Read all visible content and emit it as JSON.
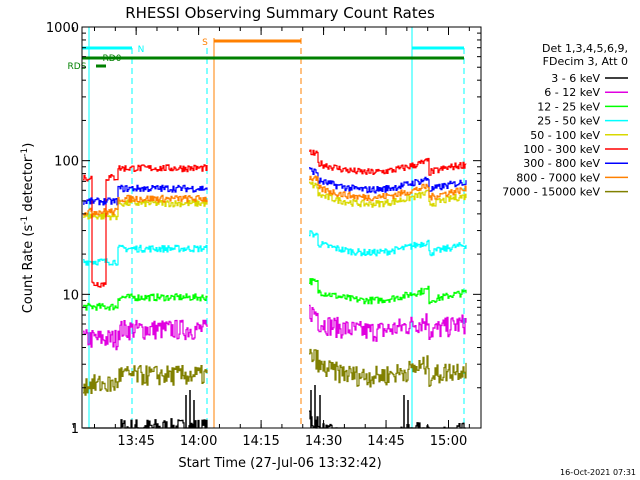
{
  "chart_data": {
    "type": "line",
    "title": "RHESSI Observing Summary Count Rates",
    "xlabel": "Start Time (27-Jul-06 13:32:42)",
    "ylabel_main": "Count Rate (s",
    "ylabel_sup1": "-1",
    "ylabel_mid": " detector",
    "ylabel_sup2": "-1",
    "ylabel_end": ")",
    "yscale": "log",
    "ylim": [
      1,
      1000
    ],
    "xlim_minutes": [
      13.53,
      15.13
    ],
    "xticks": [
      {
        "label": "13:45",
        "t": 13.75
      },
      {
        "label": "14:00",
        "t": 14.0
      },
      {
        "label": "14:15",
        "t": 14.25
      },
      {
        "label": "14:30",
        "t": 14.5
      },
      {
        "label": "14:45",
        "t": 14.75
      },
      {
        "label": "15:00",
        "t": 15.0
      }
    ],
    "yticks": [
      {
        "label": "1",
        "v": 1
      },
      {
        "label": "10",
        "v": 10
      },
      {
        "label": "100",
        "v": 100
      },
      {
        "label": "1000",
        "v": 1000
      }
    ],
    "legend_header": [
      "Det 1,3,4,5,6,9,",
      "FDecim 3, Att 0"
    ],
    "series": [
      {
        "name": "3 - 6 keV",
        "color": "#000000",
        "level1": 1.0,
        "level2": 1.0
      },
      {
        "name": "6 - 12 keV",
        "color": "#e000e0",
        "level1": 5.5,
        "level2": 6.5
      },
      {
        "name": "12 - 25 keV",
        "color": "#00ff00",
        "level1": 9.5,
        "level2": 11.0
      },
      {
        "name": "25 - 50 keV",
        "color": "#00ffff",
        "level1": 22,
        "level2": 25
      },
      {
        "name": "50 - 100 keV",
        "color": "#d8d800",
        "level1": 48,
        "level2": 58
      },
      {
        "name": "100 - 300 keV",
        "color": "#ff0000",
        "level1": 88,
        "level2": 100
      },
      {
        "name": "300 - 800 keV",
        "color": "#0000ff",
        "level1": 62,
        "level2": 74
      },
      {
        "name": "800 - 7000 keV",
        "color": "#ff8000",
        "level1": 52,
        "level2": 65
      },
      {
        "name": "7000 - 15000 keV",
        "color": "#808000",
        "level1": 2.5,
        "level2": 3.0
      }
    ],
    "flags": [
      {
        "label": "N",
        "color": "#00ffff"
      },
      {
        "label": "S",
        "color": "#ff8000"
      },
      {
        "label": "RD0",
        "color": "#008000"
      },
      {
        "label": "RDS",
        "color": "#008000"
      }
    ],
    "timestamp": "16-Oct-2021 07:31"
  }
}
